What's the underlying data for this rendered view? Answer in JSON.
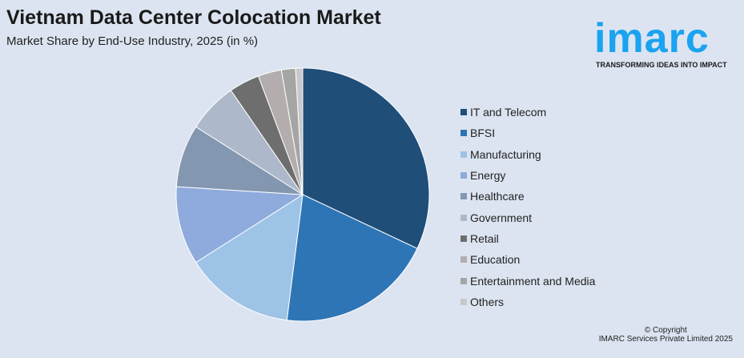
{
  "chart_data": {
    "type": "pie",
    "title": "Vietnam Data Center Colocation Market",
    "subtitle": "Market Share by End-Use Industry, 2025 (in %)",
    "categories": [
      "IT and Telecom",
      "BFSI",
      "Manufacturing",
      "Energy",
      "Healthcare",
      "Government",
      "Retail",
      "Education",
      "Entertainment and Media",
      "Others"
    ],
    "values": [
      32,
      20,
      14,
      10,
      8,
      6.4,
      3.9,
      3,
      1.8,
      0.9
    ],
    "colors": [
      "#1f4e79",
      "#2e75b6",
      "#9dc3e6",
      "#8faadc",
      "#8497b0",
      "#adb9ca",
      "#6e6e6e",
      "#b4adad",
      "#a5a5a5",
      "#c9c9c9"
    ],
    "legend_position": "right"
  },
  "logo": {
    "word": "imarc",
    "tagline": "TRANSFORMING IDEAS INTO IMPACT"
  },
  "footer": {
    "copyright": "© Copyright",
    "company": "IMARC Services Private Limited 2025"
  }
}
